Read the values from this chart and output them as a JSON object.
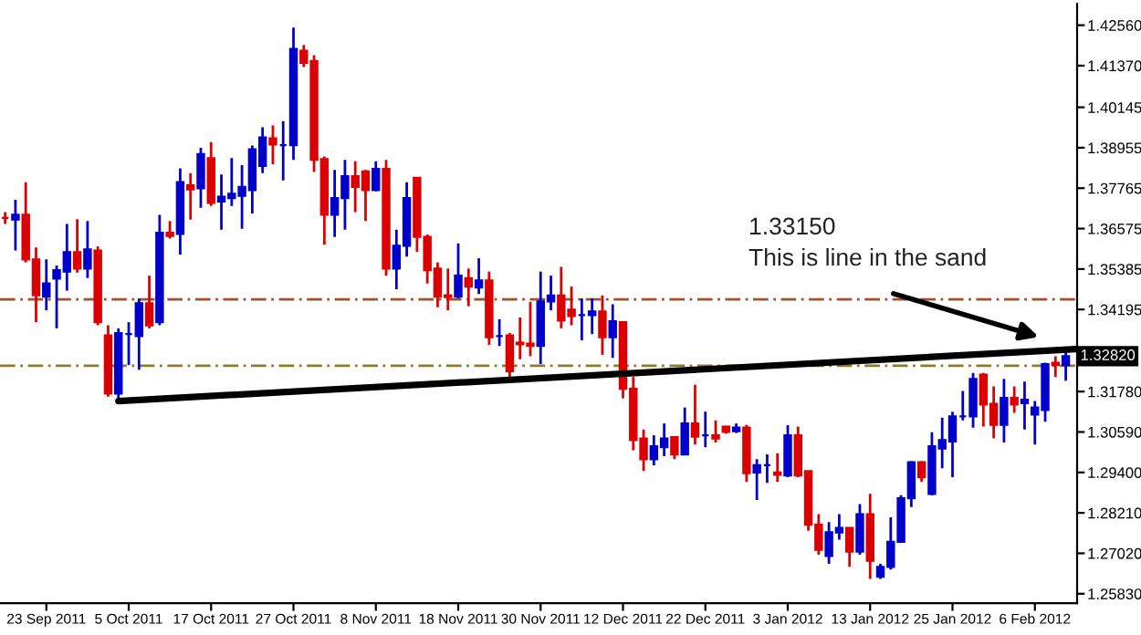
{
  "chart_data": {
    "type": "candlestick",
    "categories": [
      null,
      null,
      null,
      null,
      "23 Sep 2011",
      null,
      null,
      null,
      null,
      null,
      null,
      null,
      "5 Oct 2011",
      null,
      null,
      null,
      null,
      null,
      null,
      null,
      "17 Oct 2011",
      null,
      null,
      null,
      null,
      null,
      null,
      null,
      "27 Oct 2011",
      null,
      null,
      null,
      null,
      null,
      null,
      null,
      "8 Nov 2011",
      null,
      null,
      null,
      null,
      null,
      null,
      null,
      "18 Nov 2011",
      null,
      null,
      null,
      null,
      null,
      null,
      null,
      "30 Nov 2011",
      null,
      null,
      null,
      null,
      null,
      null,
      null,
      "12 Dec 2011",
      null,
      null,
      null,
      null,
      null,
      null,
      null,
      "22 Dec 2011",
      null,
      null,
      null,
      null,
      null,
      null,
      null,
      "3 Jan 2012",
      null,
      null,
      null,
      null,
      null,
      null,
      null,
      "13 Jan 2012",
      null,
      null,
      null,
      null,
      null,
      null,
      null,
      "25 Jan 2012",
      null,
      null,
      null,
      null,
      null,
      null,
      null,
      "6 Feb 2012",
      null,
      null,
      null,
      null
    ],
    "ohlc": [
      [
        1.3689,
        1.3706,
        1.3671,
        1.3689
      ],
      [
        1.3684,
        1.3742,
        1.3593,
        1.3698
      ],
      [
        1.3698,
        1.3794,
        1.3558,
        1.3567
      ],
      [
        1.3567,
        1.3602,
        1.3382,
        1.3461
      ],
      [
        1.3457,
        1.3567,
        1.3417,
        1.3496
      ],
      [
        1.351,
        1.3549,
        1.3364,
        1.3535
      ],
      [
        1.3531,
        1.3671,
        1.3475,
        1.3588
      ],
      [
        1.3588,
        1.3685,
        1.3528,
        1.354
      ],
      [
        1.354,
        1.368,
        1.3512,
        1.3596
      ],
      [
        1.3593,
        1.3605,
        1.3373,
        1.3382
      ],
      [
        1.3343,
        1.3373,
        1.3163,
        1.3172
      ],
      [
        1.3172,
        1.3364,
        1.3154,
        1.335
      ],
      [
        1.3347,
        1.3382,
        1.3256,
        1.3347
      ],
      [
        1.3341,
        1.3452,
        1.3242,
        1.3438
      ],
      [
        1.3438,
        1.3519,
        1.3364,
        1.3373
      ],
      [
        1.3382,
        1.3698,
        1.3373,
        1.3645
      ],
      [
        1.3645,
        1.368,
        1.3628,
        1.3636
      ],
      [
        1.3642,
        1.3835,
        1.3581,
        1.3794
      ],
      [
        1.3785,
        1.3821,
        1.3684,
        1.3773
      ],
      [
        1.3776,
        1.3895,
        1.3719,
        1.3877
      ],
      [
        1.3865,
        1.3912,
        1.3724,
        1.3733
      ],
      [
        1.3737,
        1.3817,
        1.3654,
        1.3751
      ],
      [
        1.3747,
        1.3865,
        1.3724,
        1.376
      ],
      [
        1.3754,
        1.3844,
        1.3657,
        1.378
      ],
      [
        1.3771,
        1.3902,
        1.3702,
        1.3891
      ],
      [
        1.3842,
        1.3956,
        1.3821,
        1.3926
      ],
      [
        1.3923,
        1.3961,
        1.3847,
        1.3905
      ],
      [
        1.3903,
        1.3974,
        1.3799,
        1.3903
      ],
      [
        1.3903,
        1.4249,
        1.386,
        1.4186
      ],
      [
        1.4181,
        1.4198,
        1.4133,
        1.4145
      ],
      [
        1.4151,
        1.4168,
        1.3824,
        1.386
      ],
      [
        1.3862,
        1.387,
        1.361,
        1.3698
      ],
      [
        1.3698,
        1.383,
        1.3633,
        1.3747
      ],
      [
        1.3747,
        1.386,
        1.3654,
        1.3812
      ],
      [
        1.3812,
        1.3856,
        1.3706,
        1.378
      ],
      [
        1.3826,
        1.383,
        1.368,
        1.3771
      ],
      [
        1.3771,
        1.3856,
        1.3768,
        1.3833
      ],
      [
        1.3833,
        1.386,
        1.3519,
        1.354
      ],
      [
        1.354,
        1.3654,
        1.3479,
        1.3607
      ],
      [
        1.3607,
        1.3794,
        1.3575,
        1.3747
      ],
      [
        1.3807,
        1.3807,
        1.3589,
        1.3633
      ],
      [
        1.3633,
        1.364,
        1.3496,
        1.3535
      ],
      [
        1.354,
        1.3558,
        1.3426,
        1.3457
      ],
      [
        1.3461,
        1.354,
        1.3417,
        1.3456
      ],
      [
        1.3457,
        1.3614,
        1.3452,
        1.3519
      ],
      [
        1.3512,
        1.354,
        1.3429,
        1.3487
      ],
      [
        1.3484,
        1.357,
        1.3465,
        1.3505
      ],
      [
        1.3505,
        1.3531,
        1.3315,
        1.3338
      ],
      [
        1.3341,
        1.3391,
        1.3312,
        1.3341
      ],
      [
        1.3343,
        1.335,
        1.3221,
        1.3238
      ],
      [
        1.3322,
        1.3396,
        1.3273,
        1.3317
      ],
      [
        1.3319,
        1.3442,
        1.3282,
        1.3312
      ],
      [
        1.3312,
        1.3531,
        1.3259,
        1.3443
      ],
      [
        1.3443,
        1.3519,
        1.3417,
        1.3461
      ],
      [
        1.3461,
        1.3545,
        1.3364,
        1.3387
      ],
      [
        1.3419,
        1.3487,
        1.3373,
        1.34
      ],
      [
        1.3403,
        1.3452,
        1.3329,
        1.3403
      ],
      [
        1.3403,
        1.3452,
        1.3347,
        1.3414
      ],
      [
        1.3414,
        1.3461,
        1.3286,
        1.3338
      ],
      [
        1.3338,
        1.3435,
        1.3277,
        1.3385
      ],
      [
        1.3382,
        1.3382,
        1.3158,
        1.3186
      ],
      [
        1.3186,
        1.3221,
        1.3005,
        1.3035
      ],
      [
        1.304,
        1.3066,
        1.2944,
        1.2979
      ],
      [
        1.2979,
        1.3049,
        1.2961,
        1.3017
      ],
      [
        1.3014,
        1.3084,
        1.2988,
        1.304
      ],
      [
        1.3044,
        1.3044,
        1.2979,
        1.2993
      ],
      [
        1.2993,
        1.3131,
        1.2993,
        1.3084
      ],
      [
        1.3084,
        1.3198,
        1.3022,
        1.3045
      ],
      [
        1.3049,
        1.3119,
        1.3014,
        1.3049
      ],
      [
        1.3049,
        1.3093,
        1.3028,
        1.304
      ],
      [
        1.3075,
        1.3077,
        1.3054,
        1.3059
      ],
      [
        1.3061,
        1.3084,
        1.3056,
        1.3072
      ],
      [
        1.3072,
        1.308,
        1.2912,
        1.2938
      ],
      [
        1.294,
        1.2979,
        1.2859,
        1.2961
      ],
      [
        1.2961,
        1.2993,
        1.2909,
        1.2961
      ],
      [
        1.294,
        1.2996,
        1.2912,
        1.2933
      ],
      [
        1.2931,
        1.3079,
        1.2926,
        1.3049
      ],
      [
        1.3049,
        1.3075,
        1.2926,
        1.2931
      ],
      [
        1.2944,
        1.2944,
        1.2768,
        1.2786
      ],
      [
        1.2786,
        1.2817,
        1.2698,
        1.2712
      ],
      [
        1.2694,
        1.2794,
        1.2671,
        1.2764
      ],
      [
        1.2763,
        1.2817,
        1.2742,
        1.2777
      ],
      [
        1.2777,
        1.2777,
        1.2662,
        1.2707
      ],
      [
        1.2707,
        1.2847,
        1.2698,
        1.2817
      ],
      [
        1.2817,
        1.2877,
        1.2627,
        1.268
      ],
      [
        1.2633,
        1.2671,
        1.2627,
        1.2662
      ],
      [
        1.2662,
        1.2808,
        1.2654,
        1.2736
      ],
      [
        1.2736,
        1.2873,
        1.2733,
        1.2864
      ],
      [
        1.2864,
        1.2973,
        1.2838,
        1.297
      ],
      [
        1.297,
        1.2973,
        1.2912,
        1.2926
      ],
      [
        1.2877,
        1.3058,
        1.2873,
        1.3017
      ],
      [
        1.301,
        1.3101,
        1.2952,
        1.3035
      ],
      [
        1.3031,
        1.3119,
        1.2926,
        1.3105
      ],
      [
        1.3105,
        1.318,
        1.3093,
        1.3105
      ],
      [
        1.3105,
        1.3233,
        1.3072,
        1.3215
      ],
      [
        1.3228,
        1.3233,
        1.3075,
        1.314
      ],
      [
        1.3142,
        1.3193,
        1.304,
        1.308
      ],
      [
        1.308,
        1.3215,
        1.3028,
        1.3159
      ],
      [
        1.3159,
        1.3193,
        1.3115,
        1.314
      ],
      [
        1.3144,
        1.3207,
        1.3066,
        1.3154
      ],
      [
        1.311,
        1.315,
        1.3022,
        1.3131
      ],
      [
        1.3124,
        1.3263,
        1.3089,
        1.3259
      ],
      [
        1.3263,
        1.3282,
        1.3221,
        1.3256
      ],
      [
        1.3256,
        1.3294,
        1.321,
        1.3282
      ],
      null
    ],
    "colors": [
      "#dd0000",
      "#0000cc",
      "#dd0000",
      "#dd0000",
      "#0000cc",
      "#0000cc",
      "#0000cc",
      "#dd0000",
      "#0000cc",
      "#dd0000",
      "#dd0000",
      "#0000cc",
      "#0000cc",
      "#0000cc",
      "#dd0000",
      "#0000cc",
      "#dd0000",
      "#0000cc",
      "#dd0000",
      "#0000cc",
      "#dd0000",
      "#0000cc",
      "#0000cc",
      "#0000cc",
      "#0000cc",
      "#0000cc",
      "#dd0000",
      "#0000cc",
      "#0000cc",
      "#dd0000",
      "#dd0000",
      "#dd0000",
      "#0000cc",
      "#0000cc",
      "#dd0000",
      "#dd0000",
      "#0000cc",
      "#dd0000",
      "#0000cc",
      "#0000cc",
      "#dd0000",
      "#dd0000",
      "#dd0000",
      "#dd0000",
      "#0000cc",
      "#dd0000",
      "#0000cc",
      "#dd0000",
      "#0000cc",
      "#dd0000",
      "#dd0000",
      "#dd0000",
      "#0000cc",
      "#0000cc",
      "#dd0000",
      "#dd0000",
      "#0000cc",
      "#0000cc",
      "#dd0000",
      "#0000cc",
      "#dd0000",
      "#dd0000",
      "#dd0000",
      "#0000cc",
      "#0000cc",
      "#dd0000",
      "#0000cc",
      "#dd0000",
      "#0000cc",
      "#dd0000",
      "#dd0000",
      "#0000cc",
      "#dd0000",
      "#0000cc",
      "#0000cc",
      "#dd0000",
      "#0000cc",
      "#dd0000",
      "#dd0000",
      "#dd0000",
      "#0000cc",
      "#0000cc",
      "#dd0000",
      "#0000cc",
      "#dd0000",
      "#0000cc",
      "#0000cc",
      "#0000cc",
      "#0000cc",
      "#dd0000",
      "#0000cc",
      "#0000cc",
      "#0000cc",
      "#0000cc",
      "#0000cc",
      "#dd0000",
      "#dd0000",
      "#0000cc",
      "#dd0000",
      "#0000cc",
      "#0000cc",
      "#0000cc",
      "#dd0000",
      "#0000cc",
      null
    ],
    "series": [
      {
        "type": "line",
        "color": "#000000",
        "values": [
          null,
          null,
          null,
          null,
          null,
          null,
          null,
          null,
          null,
          null,
          null,
          1.315,
          null,
          null,
          null,
          null,
          null,
          null,
          null,
          null,
          null,
          null,
          null,
          null,
          null,
          null,
          null,
          null,
          null,
          null,
          null,
          null,
          null,
          null,
          null,
          null,
          null,
          null,
          null,
          null,
          null,
          null,
          null,
          null,
          null,
          null,
          null,
          null,
          null,
          null,
          null,
          null,
          null,
          null,
          null,
          null,
          null,
          null,
          null,
          null,
          null,
          null,
          null,
          null,
          null,
          null,
          null,
          null,
          null,
          null,
          null,
          null,
          null,
          null,
          null,
          null,
          null,
          null,
          null,
          null,
          null,
          null,
          null,
          null,
          null,
          null,
          null,
          null,
          null,
          null,
          null,
          null,
          null,
          null,
          null,
          null,
          null,
          null,
          null,
          null,
          null,
          null,
          null,
          null,
          1.3303
        ]
      }
    ],
    "ylim": [
      1.2555,
      1.4319
    ],
    "yticks": [
      {
        "value": 1.2583,
        "label": "1.25830"
      },
      {
        "value": 1.2702,
        "label": "1.27020"
      },
      {
        "value": 1.2821,
        "label": "1.28210"
      },
      {
        "value": 1.294,
        "label": "1.29400"
      },
      {
        "value": 1.3059,
        "label": "1.30590"
      },
      {
        "value": 1.3178,
        "label": "1.31780"
      },
      {
        "value": 1.34195,
        "label": "1.34195"
      },
      {
        "value": 1.35385,
        "label": "1.35385"
      },
      {
        "value": 1.36575,
        "label": "1.36575"
      },
      {
        "value": 1.37765,
        "label": "1.37765"
      },
      {
        "value": 1.38955,
        "label": "1.38955"
      },
      {
        "value": 1.40145,
        "label": "1.40145"
      },
      {
        "value": 1.4137,
        "label": "1.41370"
      },
      {
        "value": 1.4256,
        "label": "1.42560"
      }
    ],
    "ref_lines": [
      {
        "axis": "y",
        "value": 1.3449,
        "color": "#a0522d",
        "line_style": "dashed"
      },
      {
        "axis": "y",
        "value": 1.3254,
        "color": "#8b7d2a",
        "line_style": "dashed"
      }
    ],
    "annotations": [
      "1.33150\nThis is line in the sand",
      "1.32820"
    ],
    "grid": false,
    "legend": false
  }
}
